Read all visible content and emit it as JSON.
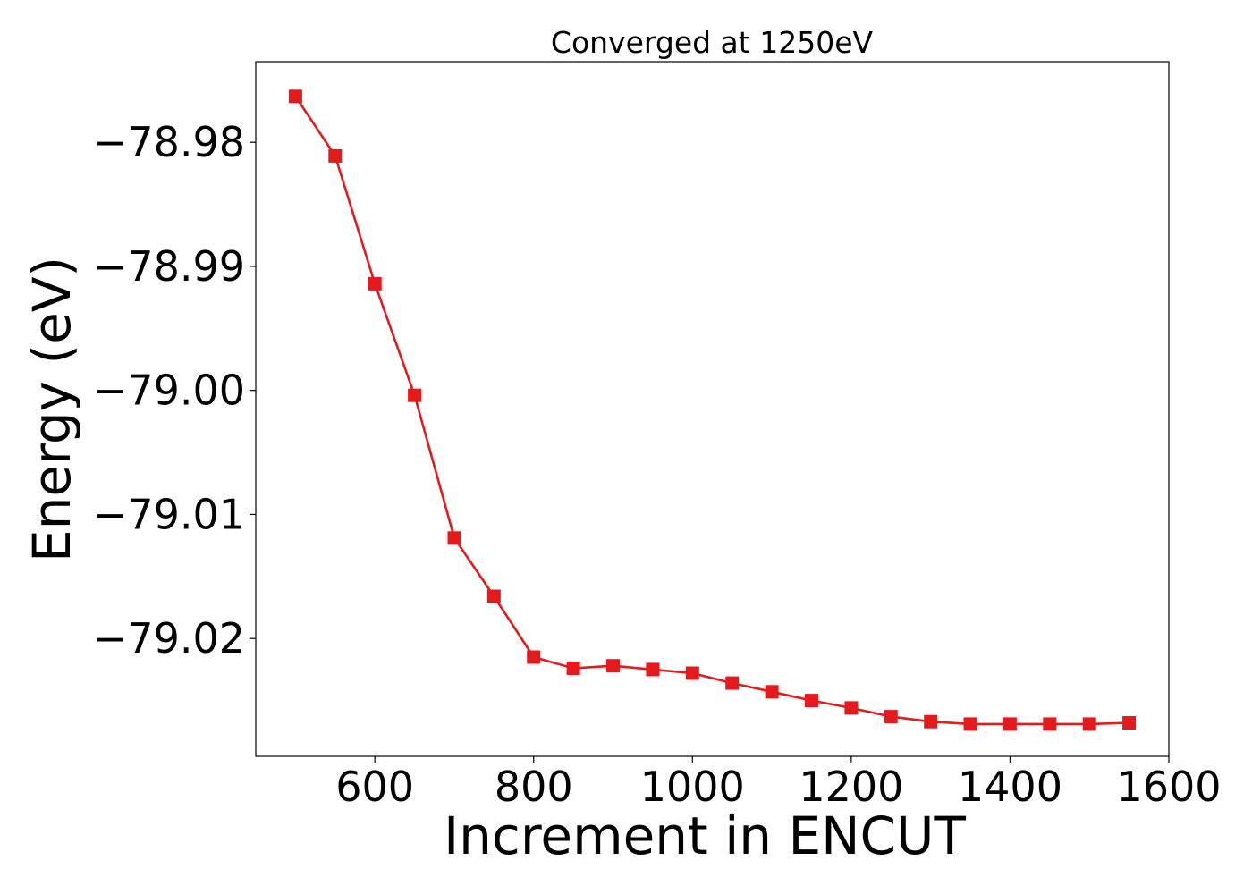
{
  "chart_data": {
    "type": "line",
    "title": "Converged at 1250eV",
    "xlabel": "Increment in ENCUT",
    "ylabel": "Energy (eV)",
    "xlim": [
      450,
      1600
    ],
    "ylim": [
      -79.0295,
      -78.9735
    ],
    "xticks": [
      600,
      800,
      1000,
      1200,
      1400,
      1600
    ],
    "xtick_labels": [
      "600",
      "800",
      "1000",
      "1200",
      "1400",
      "1600"
    ],
    "yticks": [
      -78.98,
      -78.99,
      -79.0,
      -79.01,
      -79.02
    ],
    "ytick_labels": [
      "−78.98",
      "−78.99",
      "−79.00",
      "−79.01",
      "−79.02"
    ],
    "grid": false,
    "series": [
      {
        "color": "#e41a1c",
        "marker": "square",
        "x": [
          500,
          550,
          600,
          650,
          700,
          750,
          800,
          850,
          900,
          950,
          1000,
          1050,
          1100,
          1150,
          1200,
          1250,
          1300,
          1350,
          1400,
          1450,
          1500,
          1550
        ],
        "y": [
          -78.9763,
          -78.9811,
          -78.9914,
          -79.0004,
          -79.0119,
          -79.0166,
          -79.0215,
          -79.0224,
          -79.0222,
          -79.0225,
          -79.0228,
          -79.0236,
          -79.0243,
          -79.025,
          -79.0256,
          -79.0263,
          -79.0267,
          -79.0269,
          -79.0269,
          -79.0269,
          -79.0269,
          -79.0268
        ]
      }
    ]
  }
}
